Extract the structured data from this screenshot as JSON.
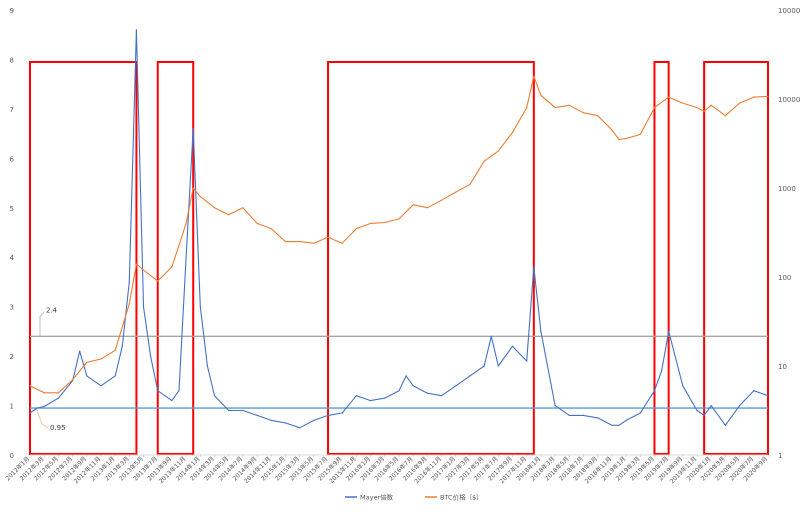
{
  "chart_data": {
    "type": "line",
    "title": "",
    "xlabel": "",
    "ylabel_left": "",
    "ylabel_right": "",
    "left_axis": {
      "ylim": [
        0,
        9
      ],
      "ticks": [
        "0",
        "1",
        "2",
        "3",
        "4",
        "5",
        "6",
        "7",
        "8",
        "9"
      ]
    },
    "right_axis": {
      "scale": "log",
      "ylim": [
        1,
        100000
      ],
      "ticks": [
        "1",
        "10",
        "100",
        "1000",
        "10000",
        "100000"
      ]
    },
    "x_tick_labels": [
      "2012年1月",
      "2012年3月",
      "2012年5月",
      "2012年7月",
      "2012年9月",
      "2012年11月",
      "2013年1月",
      "2013年3月",
      "2013年5月",
      "2013年7月",
      "2013年9月",
      "2013年11月",
      "2014年1月",
      "2014年3月",
      "2014年5月",
      "2014年7月",
      "2014年9月",
      "2014年11月",
      "2015年1月",
      "2015年3月",
      "2015年5月",
      "2015年7月",
      "2015年9月",
      "2015年11月",
      "2016年1月",
      "2016年3月",
      "2016年5月",
      "2016年7月",
      "2016年9月",
      "2016年11月",
      "2017年1月",
      "2017年3月",
      "2017年5月",
      "2017年7月",
      "2017年9月",
      "2017年11月",
      "2018年1月",
      "2018年3月",
      "2018年5月",
      "2018年7月",
      "2018年9月",
      "2018年11月",
      "2019年1月",
      "2019年3月",
      "2019年5月",
      "2019年7月",
      "2019年9月",
      "2019年11月",
      "2020年1月",
      "2020年3月",
      "2020年5月",
      "2020年7月",
      "2020年9月"
    ],
    "reference_lines": [
      {
        "label": "2.4",
        "value": 2.4,
        "color": "#a6a6a6"
      },
      {
        "label": "0.95",
        "value": 0.95,
        "color": "#5b9bd5"
      }
    ],
    "highlight_regions": [
      {
        "from": "2012年1月",
        "to": "2013年4月"
      },
      {
        "from": "2013年7月",
        "to": "2013年12月"
      },
      {
        "from": "2015年7月",
        "to": "2017年12月"
      },
      {
        "from": "2019年5月",
        "to": "2019年7月"
      },
      {
        "from": "2019年12月",
        "to": "2020年9月"
      }
    ],
    "series": [
      {
        "name": "Mayer倍数",
        "axis": "left",
        "color": "#4472c4",
        "x": [
          "2012年1月",
          "2012年2月",
          "2012年3月",
          "2012年5月",
          "2012年7月",
          "2012年8月",
          "2012年9月",
          "2012年11月",
          "2013年1月",
          "2013年2月",
          "2013年3月",
          "2013年4月",
          "2013年5月",
          "2013年6月",
          "2013年7月",
          "2013年9月",
          "2013年10月",
          "2013年11月",
          "2013年12月",
          "2014年1月",
          "2014年2月",
          "2014年3月",
          "2014年5月",
          "2014年7月",
          "2014年9月",
          "2014年11月",
          "2015年1月",
          "2015年3月",
          "2015年5月",
          "2015年7月",
          "2015年9月",
          "2015年11月",
          "2016年1月",
          "2016年3月",
          "2016年5月",
          "2016年6月",
          "2016年7月",
          "2016年9月",
          "2016年11月",
          "2017年1月",
          "2017年3月",
          "2017年5月",
          "2017年6月",
          "2017年7月",
          "2017年9月",
          "2017年11月",
          "2017年12月",
          "2018年1月",
          "2018年3月",
          "2018年5月",
          "2018年7月",
          "2018年9月",
          "2018年11月",
          "2018年12月",
          "2019年1月",
          "2019年3月",
          "2019年5月",
          "2019年6月",
          "2019年7月",
          "2019年9月",
          "2019年11月",
          "2019年12月",
          "2020年1月",
          "2020年3月",
          "2020年5月",
          "2020年7月",
          "2020年9月"
        ],
        "values": [
          0.85,
          0.95,
          0.98,
          1.15,
          1.5,
          2.1,
          1.6,
          1.4,
          1.6,
          2.2,
          3.5,
          8.6,
          3.0,
          2.0,
          1.3,
          1.1,
          1.3,
          4.0,
          6.6,
          3.0,
          1.8,
          1.2,
          0.9,
          0.9,
          0.8,
          0.7,
          0.65,
          0.55,
          0.7,
          0.8,
          0.85,
          1.2,
          1.1,
          1.15,
          1.3,
          1.6,
          1.4,
          1.25,
          1.2,
          1.4,
          1.6,
          1.8,
          2.4,
          1.8,
          2.2,
          1.9,
          3.8,
          2.5,
          1.0,
          0.8,
          0.8,
          0.75,
          0.6,
          0.6,
          0.7,
          0.85,
          1.3,
          1.7,
          2.5,
          1.4,
          0.9,
          0.8,
          1.0,
          0.6,
          1.0,
          1.3,
          1.2
        ]
      },
      {
        "name": "BTC价格（$）",
        "axis": "right",
        "color": "#ed7d31",
        "x": [
          "2012年1月",
          "2012年3月",
          "2012年5月",
          "2012年7月",
          "2012年9月",
          "2012年11月",
          "2013年1月",
          "2013年3月",
          "2013年4月",
          "2013年5月",
          "2013年7月",
          "2013年9月",
          "2013年11月",
          "2013年12月",
          "2014年1月",
          "2014年3月",
          "2014年5月",
          "2014年7月",
          "2014年9月",
          "2014年11月",
          "2015年1月",
          "2015年3月",
          "2015年5月",
          "2015年7月",
          "2015年9月",
          "2015年11月",
          "2016年1月",
          "2016年3月",
          "2016年5月",
          "2016年7月",
          "2016年9月",
          "2016年11月",
          "2017年1月",
          "2017年3月",
          "2017年5月",
          "2017年7月",
          "2017年9月",
          "2017年11月",
          "2017年12月",
          "2018年1月",
          "2018年3月",
          "2018年5月",
          "2018年7月",
          "2018年9月",
          "2018年11月",
          "2018年12月",
          "2019年1月",
          "2019年3月",
          "2019年5月",
          "2019年7月",
          "2019年9月",
          "2019年11月",
          "2019年12月",
          "2020年1月",
          "2020年3月",
          "2020年5月",
          "2020年7月",
          "2020年9月"
        ],
        "values": [
          6,
          5,
          5,
          7,
          11,
          12,
          15,
          50,
          140,
          120,
          90,
          130,
          400,
          1000,
          800,
          600,
          500,
          600,
          400,
          350,
          250,
          250,
          240,
          280,
          240,
          350,
          400,
          410,
          450,
          650,
          600,
          730,
          900,
          1100,
          2000,
          2600,
          4200,
          8000,
          18000,
          11000,
          8000,
          8500,
          7000,
          6500,
          4500,
          3500,
          3600,
          4000,
          8000,
          10500,
          9000,
          8000,
          7300,
          8500,
          6500,
          9000,
          10500,
          10700
        ]
      }
    ],
    "legend": {
      "position": "bottom",
      "entries": [
        "Mayer倍数",
        "BTC价格（$）"
      ]
    },
    "grid": false
  }
}
